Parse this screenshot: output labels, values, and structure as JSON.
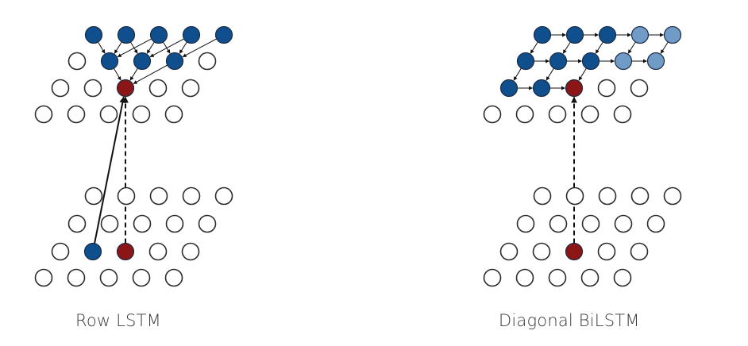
{
  "colors": {
    "empty_fill": "#ffffff",
    "node_stroke": "#2b2b2b",
    "blue": "#0f4f8d",
    "light_blue": "#6f9bc6",
    "red": "#8c1515",
    "arrow": "#111111"
  },
  "panels": [
    {
      "caption": "Row LSTM",
      "top_grid": [
        [
          "blue",
          "blue",
          "blue",
          "blue",
          "blue"
        ],
        [
          "empty",
          "blue",
          "blue",
          "blue",
          "empty"
        ],
        [
          "empty",
          "empty",
          "red",
          "empty",
          "empty"
        ],
        [
          "empty",
          "empty",
          "empty",
          "empty",
          "empty"
        ]
      ],
      "bottom_grid": [
        [
          "empty",
          "empty",
          "empty",
          "empty",
          "empty"
        ],
        [
          "empty",
          "empty",
          "empty",
          "empty",
          "empty"
        ],
        [
          "empty",
          "blue",
          "red",
          "empty",
          "empty"
        ],
        [
          "empty",
          "empty",
          "empty",
          "empty",
          "empty"
        ]
      ]
    },
    {
      "caption": "Diagonal BiLSTM",
      "top_grid": [
        [
          "blue",
          "blue",
          "blue",
          "light",
          "light"
        ],
        [
          "blue",
          "blue",
          "blue",
          "light",
          "light"
        ],
        [
          "blue",
          "blue",
          "red",
          "empty",
          "empty"
        ],
        [
          "empty",
          "empty",
          "empty",
          "empty",
          "empty"
        ]
      ],
      "bottom_grid": [
        [
          "empty",
          "empty",
          "empty",
          "empty",
          "empty"
        ],
        [
          "empty",
          "empty",
          "empty",
          "empty",
          "empty"
        ],
        [
          "empty",
          "empty",
          "red",
          "empty",
          "empty"
        ],
        [
          "empty",
          "empty",
          "empty",
          "empty",
          "empty"
        ]
      ]
    }
  ]
}
